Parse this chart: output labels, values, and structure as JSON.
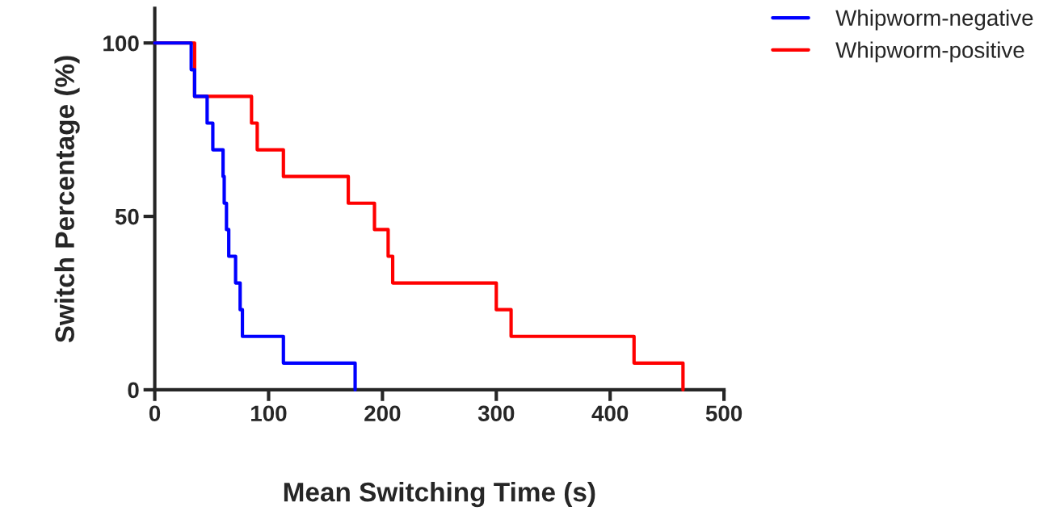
{
  "chart_data": {
    "type": "step",
    "xlabel": "Mean Switching Time (s)",
    "ylabel": "Switch Percentage (%)",
    "xlim": [
      0,
      500
    ],
    "xticks": [
      0,
      100,
      200,
      300,
      400,
      500
    ],
    "ylim": [
      0,
      110
    ],
    "yticks": [
      0,
      50,
      100
    ],
    "grid": false,
    "legend": "top right",
    "line_style": "solid",
    "series": [
      {
        "name": "Whipworm-negative",
        "color": "#0000ff",
        "x": [
          0,
          32,
          35,
          46,
          51,
          60,
          61,
          63,
          65,
          71,
          75,
          77,
          113,
          176
        ],
        "values": [
          100,
          92.3,
          84.6,
          76.9,
          69.2,
          61.5,
          53.8,
          46.2,
          38.5,
          30.8,
          23.1,
          15.4,
          7.7,
          0
        ]
      },
      {
        "name": "Whipworm-positive",
        "color": "#ff0000",
        "x": [
          0,
          35,
          85,
          90,
          113,
          170,
          193,
          205,
          209,
          300,
          313,
          421,
          464
        ],
        "values": [
          100,
          84.6,
          76.9,
          69.2,
          61.5,
          53.8,
          46.2,
          38.5,
          30.8,
          23.1,
          15.4,
          7.7,
          0
        ]
      }
    ]
  }
}
